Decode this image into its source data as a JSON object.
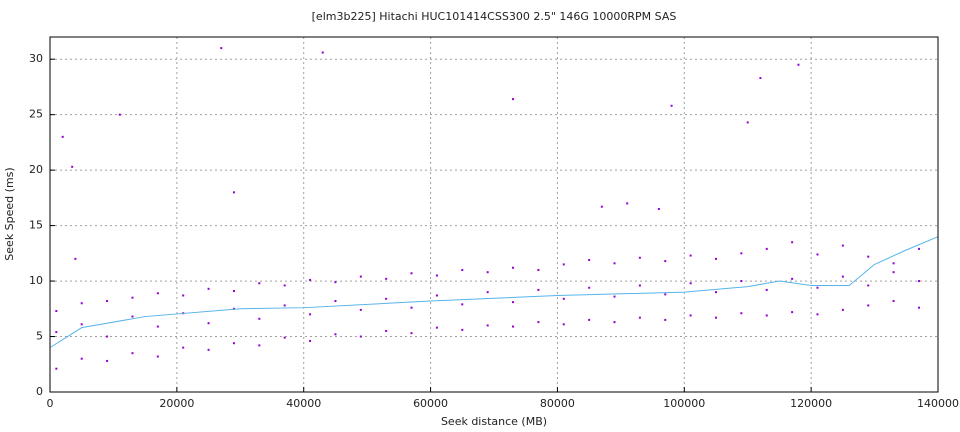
{
  "chart_data": {
    "type": "scatter",
    "title": "[elm3b225] Hitachi HUC101414CSS300 2.5\" 146G 10000RPM SAS",
    "x_label": "Seek distance (MB)",
    "y_label": "Seek Speed (ms)",
    "xlim": [
      0,
      140000
    ],
    "xticks": [
      0,
      20000,
      40000,
      60000,
      80000,
      100000,
      120000,
      140000
    ],
    "ylim": [
      0,
      32
    ],
    "yticks": [
      0,
      5,
      10,
      15,
      20,
      25,
      30
    ],
    "grid": true,
    "series": [
      {
        "color": "#9400d3",
        "x": [
          1000,
          1000,
          1000,
          5000,
          5000,
          5000,
          9000,
          9000,
          9000,
          13000,
          13000,
          13000,
          17000,
          17000,
          17000,
          21000,
          21000,
          21000,
          25000,
          25000,
          25000,
          29000,
          29000,
          29000,
          33000,
          33000,
          33000,
          37000,
          37000,
          37000,
          41000,
          41000,
          41000,
          45000,
          45000,
          45000,
          49000,
          49000,
          49000,
          53000,
          53000,
          53000,
          57000,
          57000,
          57000,
          61000,
          61000,
          61000,
          65000,
          65000,
          65000,
          69000,
          69000,
          69000,
          73000,
          73000,
          73000,
          77000,
          77000,
          77000,
          81000,
          81000,
          81000,
          85000,
          85000,
          85000,
          89000,
          89000,
          89000,
          93000,
          93000,
          93000,
          97000,
          97000,
          97000,
          101000,
          101000,
          101000,
          105000,
          105000,
          105000,
          109000,
          109000,
          109000,
          113000,
          113000,
          113000,
          117000,
          117000,
          117000,
          121000,
          121000,
          121000,
          125000,
          125000,
          125000,
          129000,
          129000,
          129000,
          133000,
          133000,
          133000,
          137000,
          137000,
          137000,
          2000,
          3500,
          27000,
          43000,
          73000,
          98000,
          112000,
          118000,
          110000,
          29000,
          87000,
          91000,
          96000,
          11000,
          4000
        ],
        "values": [
          2.1,
          5.4,
          7.3,
          3.0,
          6.1,
          8.0,
          2.8,
          5.0,
          8.2,
          3.5,
          6.8,
          8.5,
          3.2,
          5.9,
          8.9,
          4.0,
          7.1,
          8.7,
          3.8,
          6.2,
          9.3,
          4.4,
          7.5,
          9.1,
          4.2,
          6.6,
          9.8,
          4.9,
          7.8,
          9.6,
          4.6,
          7.0,
          10.1,
          5.2,
          8.2,
          9.9,
          5.0,
          7.4,
          10.4,
          5.5,
          8.4,
          10.2,
          5.3,
          7.6,
          10.7,
          5.8,
          8.7,
          10.5,
          5.6,
          7.9,
          11.0,
          6.0,
          9.0,
          10.8,
          5.9,
          8.1,
          11.2,
          6.3,
          9.2,
          11.0,
          6.1,
          8.4,
          11.5,
          6.5,
          9.4,
          11.9,
          6.3,
          8.6,
          11.6,
          6.7,
          9.6,
          12.1,
          6.5,
          8.8,
          11.8,
          6.9,
          9.8,
          12.3,
          6.7,
          9.0,
          12.0,
          7.1,
          10.0,
          12.5,
          6.9,
          9.2,
          12.9,
          7.2,
          10.2,
          13.5,
          7.0,
          9.4,
          12.4,
          7.4,
          10.4,
          13.2,
          7.8,
          9.6,
          12.2,
          8.2,
          10.8,
          11.6,
          7.6,
          10.0,
          12.9,
          23,
          20.3,
          31,
          30.6,
          26.4,
          25.8,
          28.3,
          29.5,
          24.3,
          18,
          16.7,
          17,
          16.5,
          25,
          12
        ]
      },
      {
        "type": "line",
        "color": "#56b4e9",
        "x": [
          0,
          5000,
          15000,
          30000,
          40000,
          60000,
          80000,
          100000,
          110000,
          115000,
          120000,
          126000,
          130000,
          135000,
          140000
        ],
        "values": [
          4.0,
          5.8,
          6.8,
          7.5,
          7.6,
          8.2,
          8.7,
          9.0,
          9.5,
          10.0,
          9.6,
          9.6,
          11.5,
          12.8,
          14.0
        ]
      }
    ]
  }
}
